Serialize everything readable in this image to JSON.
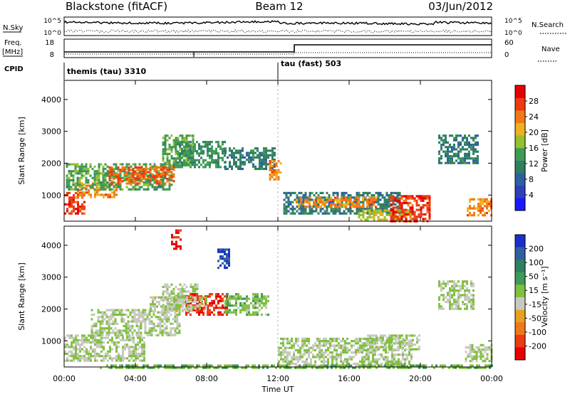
{
  "header": {
    "station": "Blackstone (fitACF)",
    "beam": "Beam 12",
    "date": "03/Jun/2012"
  },
  "top_panels": {
    "nsky_label": "N.Sky",
    "nsearch_label": "N.Search",
    "nsky_ticks": [
      "10^5",
      "10^0"
    ],
    "nsearch_ticks": [
      "10^5",
      "10^0"
    ],
    "freq_label": "Freq.",
    "freq_unit": "[MHz]",
    "freq_ticks": [
      "18",
      "8"
    ],
    "nave_label": "Nave",
    "nave_ticks": [
      "60",
      "0"
    ],
    "cpid_label": "CPID",
    "cpid_segments": [
      {
        "label": "themis (tau) 3310",
        "start_hour": 0
      },
      {
        "label": "tau (fast) 503",
        "start_hour": 12
      }
    ]
  },
  "colorbars": {
    "power": {
      "label": "Power [dB]",
      "ticks": [
        "4",
        "8",
        "12",
        "16",
        "20",
        "24",
        "28"
      ],
      "colors": [
        "#1a1aff",
        "#2e3fb8",
        "#2f5fa0",
        "#2f8060",
        "#3f9a55",
        "#95c030",
        "#f0b020",
        "#f07818",
        "#ee3a10",
        "#e80000"
      ]
    },
    "velocity": {
      "label": "Velocity [m s⁻¹]",
      "ticks": [
        "200",
        "100",
        "50",
        "15",
        "-15",
        "-50",
        "-100",
        "-200"
      ],
      "colors": [
        "#1a30c8",
        "#2f5fa0",
        "#2f8060",
        "#3f9a55",
        "#80c040",
        "#c8c8c0",
        "#e8a020",
        "#f07818",
        "#ee3a10",
        "#e80000"
      ]
    }
  },
  "time_axis": {
    "ticks": [
      "00:00",
      "04:00",
      "08:00",
      "12:00",
      "16:00",
      "20:00",
      "00:00"
    ],
    "label": "Time UT"
  },
  "chart_data": [
    {
      "type": "heatmap",
      "panel": "power",
      "ylabel": "Slant Range [km]",
      "yticks": [
        "1000",
        "2000",
        "3000",
        "4000"
      ],
      "ylim": [
        180,
        4600
      ],
      "xlim": [
        0,
        24
      ],
      "clim": [
        0,
        30
      ],
      "echo_regions": [
        {
          "t0": 0.0,
          "t1": 1.2,
          "r0": 400,
          "r1": 1100,
          "value": 26
        },
        {
          "t0": 0.6,
          "t1": 3.0,
          "r0": 900,
          "r1": 1400,
          "value": 22
        },
        {
          "t0": 0.1,
          "t1": 6.0,
          "r0": 1200,
          "r1": 2000,
          "value": 14
        },
        {
          "t0": 2.5,
          "t1": 6.2,
          "r0": 1350,
          "r1": 1900,
          "value": 24
        },
        {
          "t0": 5.5,
          "t1": 7.2,
          "r0": 1900,
          "r1": 2900,
          "value": 14
        },
        {
          "t0": 6.2,
          "t1": 9.0,
          "r0": 1900,
          "r1": 2700,
          "value": 12
        },
        {
          "t0": 9.0,
          "t1": 11.8,
          "r0": 1800,
          "r1": 2500,
          "value": 10
        },
        {
          "t0": 11.5,
          "t1": 12.2,
          "r0": 1500,
          "r1": 2100,
          "value": 22
        },
        {
          "t0": 12.3,
          "t1": 18.8,
          "r0": 400,
          "r1": 1100,
          "value": 10
        },
        {
          "t0": 13.0,
          "t1": 17.5,
          "r0": 600,
          "r1": 950,
          "value": 22
        },
        {
          "t0": 16.5,
          "t1": 19.5,
          "r0": 200,
          "r1": 550,
          "value": 18
        },
        {
          "t0": 18.3,
          "t1": 20.5,
          "r0": 200,
          "r1": 1000,
          "value": 26
        },
        {
          "t0": 21.0,
          "t1": 23.2,
          "r0": 2000,
          "r1": 2900,
          "value": 10
        },
        {
          "t0": 22.6,
          "t1": 24.0,
          "r0": 350,
          "r1": 900,
          "value": 22
        }
      ]
    },
    {
      "type": "heatmap",
      "panel": "velocity",
      "ylabel": "Slant Range [km]",
      "yticks": [
        "1000",
        "2000",
        "3000",
        "4000"
      ],
      "ylim": [
        180,
        4600
      ],
      "xlim": [
        0,
        24
      ],
      "clim": [
        -250,
        250
      ],
      "echo_regions": [
        {
          "t0": 0.0,
          "t1": 4.5,
          "r0": 400,
          "r1": 1200,
          "value": 0
        },
        {
          "t0": 1.5,
          "t1": 6.5,
          "r0": 1200,
          "r1": 2000,
          "value": 0
        },
        {
          "t0": 5.5,
          "t1": 7.5,
          "r0": 2000,
          "r1": 2800,
          "value": 5
        },
        {
          "t0": 6.8,
          "t1": 9.2,
          "r0": 1800,
          "r1": 2500,
          "value": -200
        },
        {
          "t0": 9.0,
          "t1": 11.5,
          "r0": 1800,
          "r1": 2500,
          "value": 30
        },
        {
          "t0": 4.8,
          "t1": 8.0,
          "r0": 1900,
          "r1": 2400,
          "value": -15
        },
        {
          "t0": 12.0,
          "t1": 19.5,
          "r0": 200,
          "r1": 1100,
          "value": 0
        },
        {
          "t0": 17.0,
          "t1": 20.0,
          "r0": 700,
          "r1": 1200,
          "value": 0
        },
        {
          "t0": 2.0,
          "t1": 24.0,
          "r0": 180,
          "r1": 260,
          "value": 40
        },
        {
          "t0": 21.0,
          "t1": 23.0,
          "r0": 2000,
          "r1": 2900,
          "value": 0
        },
        {
          "t0": 22.5,
          "t1": 24.0,
          "r0": 350,
          "r1": 900,
          "value": 0
        },
        {
          "t0": 8.6,
          "t1": 9.3,
          "r0": 3300,
          "r1": 3900,
          "value": 200
        },
        {
          "t0": 6.0,
          "t1": 6.6,
          "r0": 3900,
          "r1": 4500,
          "value": -200
        }
      ]
    }
  ]
}
